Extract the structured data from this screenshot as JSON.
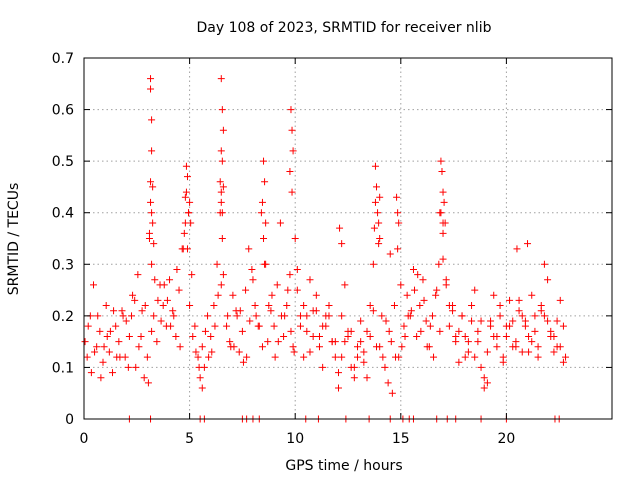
{
  "chart_data": {
    "type": "scatter",
    "title": "Day 108 of 2023, SRMTID for receiver nlib",
    "xlabel": "GPS time / hours",
    "ylabel": "SRMTID / TECUs",
    "xlim": [
      0,
      25
    ],
    "ylim": [
      0,
      0.7
    ],
    "xticks": [
      0,
      5,
      10,
      15,
      20
    ],
    "xtick_labels": [
      "0",
      "5",
      "10",
      "15",
      "20"
    ],
    "yticks": [
      0,
      0.1,
      0.2,
      0.3,
      0.4,
      0.5,
      0.6,
      0.7
    ],
    "ytick_labels": [
      "0",
      "0.1",
      "0.2",
      "0.3",
      "0.4",
      "0.5",
      "0.6",
      "0.7"
    ],
    "grid": true,
    "marker": "+",
    "color": "#ff0000",
    "series": [
      {
        "name": "SRMTID",
        "x": [
          0.05,
          0.15,
          0.3,
          0.45,
          0.6,
          0.75,
          0.9,
          1.05,
          1.2,
          1.35,
          1.5,
          1.65,
          1.8,
          1.95,
          2.1,
          2.25,
          2.4,
          2.55,
          2.7,
          2.85,
          3.0,
          3.1,
          3.15,
          3.2,
          3.3,
          3.45,
          3.6,
          3.75,
          3.9,
          4.05,
          4.2,
          4.35,
          4.5,
          4.65,
          4.8,
          4.85,
          4.95,
          5.1,
          5.25,
          5.4,
          5.5,
          5.6,
          5.7,
          5.85,
          6.0,
          6.15,
          6.3,
          6.45,
          6.5,
          6.55,
          6.6,
          6.75,
          6.9,
          7.05,
          7.2,
          7.35,
          7.5,
          7.65,
          7.8,
          7.95,
          8.1,
          8.25,
          8.4,
          8.55,
          8.7,
          8.85,
          9.0,
          9.15,
          9.3,
          9.45,
          9.6,
          9.75,
          9.9,
          10.0,
          10.1,
          10.25,
          10.4,
          10.55,
          10.7,
          10.85,
          11.0,
          11.15,
          11.3,
          11.45,
          11.6,
          11.75,
          11.9,
          12.05,
          12.2,
          12.35,
          12.5,
          12.65,
          12.8,
          12.95,
          13.1,
          13.25,
          13.4,
          13.55,
          13.7,
          13.8,
          13.95,
          14.1,
          14.25,
          14.4,
          14.55,
          14.7,
          14.85,
          15.0,
          15.15,
          15.3,
          15.45,
          15.6,
          15.75,
          15.9,
          16.05,
          16.2,
          16.35,
          16.5,
          16.65,
          16.8,
          16.9,
          17.0,
          17.15,
          17.3,
          17.45,
          17.6,
          17.75,
          17.9,
          18.05,
          18.2,
          18.35,
          18.5,
          18.65,
          18.8,
          18.95,
          19.1,
          19.25,
          19.4,
          19.55,
          19.7,
          19.85,
          20.0,
          20.15,
          20.3,
          20.45,
          20.6,
          20.75,
          20.9,
          21.05,
          21.2,
          21.35,
          21.5,
          21.65,
          21.8,
          21.95,
          22.1,
          22.25,
          22.4,
          22.55,
          22.7,
          0.2,
          0.5,
          0.8,
          1.1,
          1.4,
          1.7,
          2.0,
          2.3,
          2.6,
          2.9,
          3.2,
          3.5,
          3.8,
          4.1,
          4.4,
          4.7,
          5.0,
          5.3,
          5.6,
          5.9,
          6.2,
          6.5,
          6.8,
          7.1,
          7.4,
          7.7,
          8.0,
          8.3,
          8.6,
          8.9,
          9.2,
          9.5,
          9.8,
          10.1,
          10.4,
          10.7,
          11.0,
          11.3,
          11.6,
          11.9,
          12.2,
          12.5,
          12.8,
          13.1,
          13.4,
          13.7,
          14.0,
          14.3,
          14.6,
          14.9,
          15.2,
          15.5,
          15.8,
          16.1,
          16.4,
          16.7,
          17.0,
          17.3,
          17.6,
          17.9,
          18.2,
          18.5,
          18.8,
          19.1,
          19.4,
          19.7,
          20.0,
          20.3,
          20.6,
          20.9,
          21.2,
          21.5,
          21.8,
          22.1,
          22.4,
          22.7,
          0.35,
          0.65,
          0.95,
          1.25,
          1.55,
          1.85,
          2.15,
          2.45,
          2.75,
          3.05,
          3.35,
          3.65,
          3.95,
          4.25,
          4.55,
          5.15,
          5.45,
          5.75,
          6.05,
          6.35,
          6.95,
          7.25,
          7.55,
          7.85,
          8.15,
          8.45,
          8.75,
          9.05,
          9.35,
          9.65,
          9.95,
          10.25,
          10.55,
          10.85,
          11.15,
          11.45,
          11.75,
          12.05,
          12.35,
          12.65,
          12.95,
          13.25,
          13.55,
          13.85,
          14.15,
          14.45,
          14.75,
          15.05,
          15.35,
          15.65,
          15.95,
          16.25,
          16.55,
          16.85,
          17.15,
          17.45,
          17.75,
          18.05,
          18.35,
          18.65,
          18.95,
          19.25,
          19.55,
          19.85,
          20.15,
          20.45,
          20.75,
          21.05,
          21.35,
          21.65,
          21.95,
          22.25,
          22.55,
          22.8,
          3.15,
          3.15,
          3.2,
          3.2,
          3.15,
          3.25,
          3.2,
          3.1,
          3.3,
          3.25,
          4.85,
          4.9,
          4.8,
          5.0,
          4.95,
          4.75,
          5.05,
          4.9,
          6.5,
          6.55,
          6.6,
          6.5,
          6.55,
          6.45,
          6.6,
          6.5,
          6.55,
          8.5,
          8.55,
          8.45,
          8.6,
          8.5,
          9.8,
          9.85,
          9.9,
          9.75,
          9.85,
          13.8,
          13.85,
          13.9,
          13.75,
          13.95,
          14.0,
          14.8,
          14.85,
          14.9,
          16.9,
          16.95,
          17.0,
          17.05,
          17.1,
          16.85,
          17.0,
          12.1,
          12.2,
          14.0,
          14.5,
          20.5,
          21.0,
          2.15,
          3.15,
          5.5,
          5.7,
          7.5,
          7.7,
          8.0,
          8.3,
          10.5,
          11.1,
          12.4,
          13.5,
          14.5,
          15.1,
          15.4,
          15.6,
          16.7,
          17.2,
          17.6,
          18.8,
          20.0,
          22.3,
          22.5
        ],
        "y": [
          0.15,
          0.12,
          0.2,
          0.26,
          0.14,
          0.17,
          0.11,
          0.22,
          0.13,
          0.09,
          0.18,
          0.15,
          0.21,
          0.12,
          0.1,
          0.2,
          0.23,
          0.28,
          0.16,
          0.08,
          0.12,
          0.35,
          0.42,
          0.3,
          0.2,
          0.15,
          0.26,
          0.22,
          0.18,
          0.27,
          0.21,
          0.16,
          0.25,
          0.33,
          0.38,
          0.44,
          0.4,
          0.28,
          0.18,
          0.12,
          0.08,
          0.14,
          0.1,
          0.2,
          0.16,
          0.22,
          0.3,
          0.4,
          0.44,
          0.35,
          0.28,
          0.18,
          0.15,
          0.24,
          0.21,
          0.13,
          0.17,
          0.25,
          0.33,
          0.29,
          0.22,
          0.18,
          0.4,
          0.3,
          0.15,
          0.21,
          0.18,
          0.26,
          0.38,
          0.16,
          0.22,
          0.28,
          0.14,
          0.35,
          0.25,
          0.18,
          0.12,
          0.2,
          0.27,
          0.16,
          0.21,
          0.14,
          0.1,
          0.18,
          0.22,
          0.15,
          0.12,
          0.09,
          0.2,
          0.26,
          0.16,
          0.1,
          0.08,
          0.14,
          0.19,
          0.13,
          0.17,
          0.22,
          0.3,
          0.42,
          0.38,
          0.2,
          0.1,
          0.07,
          0.15,
          0.22,
          0.33,
          0.26,
          0.18,
          0.24,
          0.2,
          0.29,
          0.16,
          0.22,
          0.27,
          0.19,
          0.14,
          0.2,
          0.24,
          0.3,
          0.4,
          0.38,
          0.26,
          0.18,
          0.22,
          0.15,
          0.11,
          0.2,
          0.16,
          0.13,
          0.22,
          0.25,
          0.17,
          0.1,
          0.08,
          0.13,
          0.18,
          0.24,
          0.14,
          0.2,
          0.11,
          0.16,
          0.23,
          0.19,
          0.15,
          0.21,
          0.13,
          0.18,
          0.16,
          0.24,
          0.2,
          0.14,
          0.22,
          0.3,
          0.27,
          0.17,
          0.13,
          0.19,
          0.23,
          0.11,
          0.18,
          0.13,
          0.08,
          0.16,
          0.21,
          0.12,
          0.19,
          0.24,
          0.14,
          0.22,
          0.17,
          0.23,
          0.26,
          0.18,
          0.29,
          0.33,
          0.22,
          0.13,
          0.06,
          0.12,
          0.18,
          0.26,
          0.2,
          0.14,
          0.21,
          0.12,
          0.27,
          0.18,
          0.3,
          0.24,
          0.15,
          0.2,
          0.17,
          0.29,
          0.22,
          0.13,
          0.24,
          0.18,
          0.2,
          0.15,
          0.12,
          0.17,
          0.1,
          0.15,
          0.08,
          0.21,
          0.14,
          0.19,
          0.05,
          0.12,
          0.16,
          0.21,
          0.28,
          0.23,
          0.18,
          0.25,
          0.31,
          0.22,
          0.16,
          0.2,
          0.15,
          0.12,
          0.19,
          0.07,
          0.16,
          0.22,
          0.18,
          0.14,
          0.23,
          0.19,
          0.15,
          0.12,
          0.2,
          0.16,
          0.14,
          0.18,
          0.09,
          0.2,
          0.14,
          0.17,
          0.12,
          0.2,
          0.16,
          0.1,
          0.21,
          0.07,
          0.27,
          0.19,
          0.23,
          0.2,
          0.14,
          0.16,
          0.1,
          0.17,
          0.13,
          0.24,
          0.14,
          0.2,
          0.11,
          0.19,
          0.2,
          0.14,
          0.22,
          0.12,
          0.2,
          0.25,
          0.13,
          0.2,
          0.17,
          0.21,
          0.16,
          0.2,
          0.15,
          0.06,
          0.15,
          0.17,
          0.12,
          0.11,
          0.16,
          0.14,
          0.12,
          0.17,
          0.12,
          0.14,
          0.2,
          0.25,
          0.17,
          0.14,
          0.12,
          0.17,
          0.27,
          0.21,
          0.17,
          0.12,
          0.19,
          0.15,
          0.06,
          0.19,
          0.16,
          0.12,
          0.18,
          0.14,
          0.2,
          0.13,
          0.17,
          0.21,
          0.19,
          0.16,
          0.14,
          0.12,
          0.66,
          0.64,
          0.58,
          0.52,
          0.46,
          0.45,
          0.4,
          0.36,
          0.34,
          0.38,
          0.49,
          0.47,
          0.43,
          0.42,
          0.4,
          0.36,
          0.38,
          0.33,
          0.66,
          0.6,
          0.56,
          0.52,
          0.5,
          0.46,
          0.45,
          0.42,
          0.4,
          0.5,
          0.46,
          0.42,
          0.38,
          0.35,
          0.6,
          0.56,
          0.52,
          0.48,
          0.44,
          0.49,
          0.45,
          0.4,
          0.37,
          0.34,
          0.43,
          0.43,
          0.4,
          0.38,
          0.5,
          0.48,
          0.44,
          0.42,
          0.38,
          0.4,
          0.36,
          0.37,
          0.34,
          0.35,
          0.32,
          0.33,
          0.34,
          0,
          0,
          0,
          0,
          0,
          0,
          0,
          0,
          0,
          0,
          0,
          0,
          0,
          0,
          0,
          0,
          0,
          0,
          0,
          0,
          0,
          0,
          0
        ]
      }
    ]
  }
}
